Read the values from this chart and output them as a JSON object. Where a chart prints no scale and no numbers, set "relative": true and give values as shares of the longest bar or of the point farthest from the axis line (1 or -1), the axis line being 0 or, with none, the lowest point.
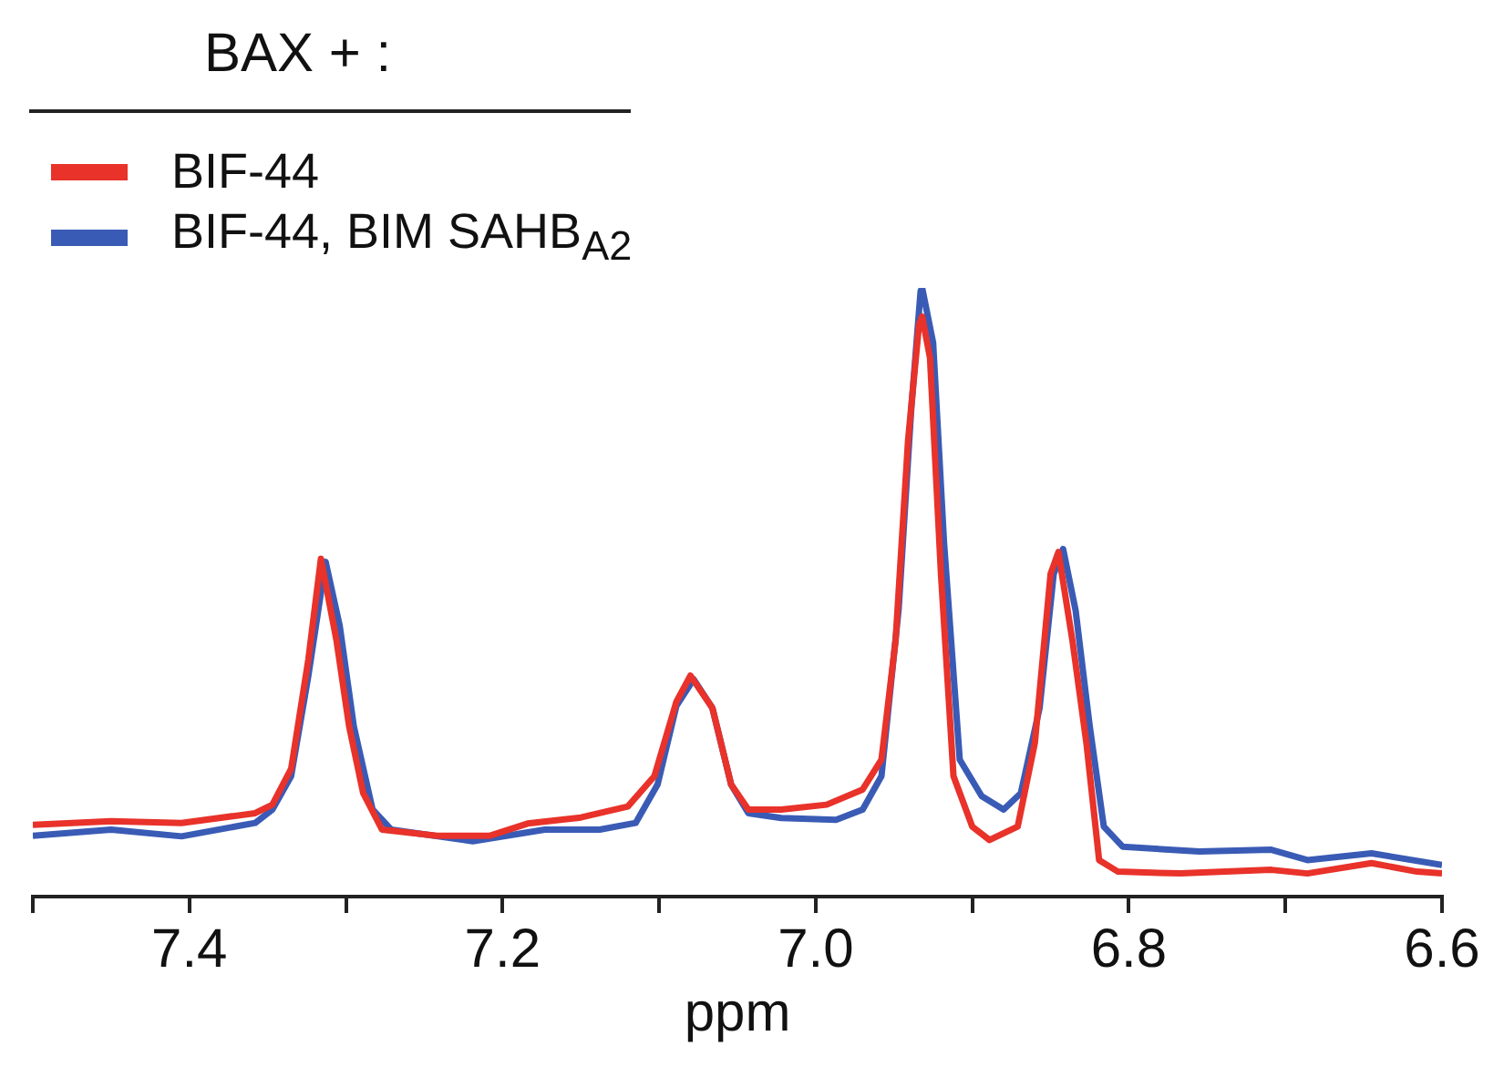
{
  "chart_data": {
    "type": "line",
    "relative": true,
    "xlabel": "ppm",
    "legend_title": "BAX + :",
    "legend": "top left",
    "grid": false,
    "marker": "none",
    "line_style": "solid",
    "xlim": [
      7.5,
      6.6
    ],
    "xticks": [
      {
        "value": 7.5,
        "label": null
      },
      7.4,
      {
        "value": 7.3,
        "label": null
      },
      7.2,
      {
        "value": 7.1,
        "label": null
      },
      {
        "value": 7.0,
        "label": "7.0"
      },
      {
        "value": 6.9,
        "label": null
      },
      6.8,
      {
        "value": 6.7,
        "label": null
      },
      6.6
    ],
    "series": [
      {
        "name": "BIF-44",
        "color": "#e8322a",
        "x": [
          7.5,
          7.45,
          7.405,
          7.358,
          7.347,
          7.335,
          7.324,
          7.316,
          7.306,
          7.298,
          7.289,
          7.277,
          7.242,
          7.208,
          7.184,
          7.15,
          7.12,
          7.103,
          7.089,
          7.08,
          7.066,
          7.054,
          7.043,
          7.022,
          6.993,
          6.97,
          6.958,
          6.949,
          6.941,
          6.934,
          6.932,
          6.927,
          6.92,
          6.912,
          6.9,
          6.889,
          6.871,
          6.86,
          6.85,
          6.845,
          6.836,
          6.827,
          6.819,
          6.807,
          6.767,
          6.709,
          6.686,
          6.645,
          6.616,
          6.6
        ],
        "values": [
          0.118,
          0.124,
          0.121,
          0.137,
          0.151,
          0.21,
          0.39,
          0.555,
          0.42,
          0.28,
          0.17,
          0.11,
          0.1,
          0.1,
          0.12,
          0.13,
          0.148,
          0.198,
          0.32,
          0.363,
          0.31,
          0.184,
          0.143,
          0.143,
          0.151,
          0.176,
          0.225,
          0.42,
          0.75,
          0.94,
          0.953,
          0.885,
          0.53,
          0.198,
          0.115,
          0.093,
          0.115,
          0.253,
          0.53,
          0.566,
          0.42,
          0.25,
          0.06,
          0.041,
          0.038,
          0.044,
          0.038,
          0.055,
          0.041,
          0.038
        ]
      },
      {
        "name": "BIF-44, BIM SAHB$_{A2}$",
        "color": "#3a5bb5",
        "x": [
          7.5,
          7.45,
          7.405,
          7.358,
          7.347,
          7.335,
          7.324,
          7.313,
          7.304,
          7.295,
          7.283,
          7.271,
          7.219,
          7.173,
          7.138,
          7.115,
          7.101,
          7.089,
          7.078,
          7.066,
          7.054,
          7.043,
          7.022,
          6.987,
          6.97,
          6.958,
          6.947,
          6.939,
          6.933,
          6.932,
          6.925,
          6.918,
          6.908,
          6.894,
          6.88,
          6.869,
          6.857,
          6.848,
          6.842,
          6.834,
          6.825,
          6.816,
          6.804,
          6.755,
          6.709,
          6.686,
          6.645,
          6.6
        ],
        "values": [
          0.1,
          0.11,
          0.099,
          0.121,
          0.143,
          0.198,
          0.363,
          0.55,
          0.445,
          0.28,
          0.143,
          0.11,
          0.091,
          0.11,
          0.11,
          0.121,
          0.184,
          0.313,
          0.357,
          0.31,
          0.184,
          0.137,
          0.129,
          0.126,
          0.143,
          0.198,
          0.473,
          0.8,
          0.995,
          1.0,
          0.91,
          0.58,
          0.225,
          0.165,
          0.143,
          0.17,
          0.31,
          0.53,
          0.571,
          0.47,
          0.28,
          0.115,
          0.082,
          0.074,
          0.077,
          0.06,
          0.071,
          0.052
        ]
      }
    ]
  }
}
